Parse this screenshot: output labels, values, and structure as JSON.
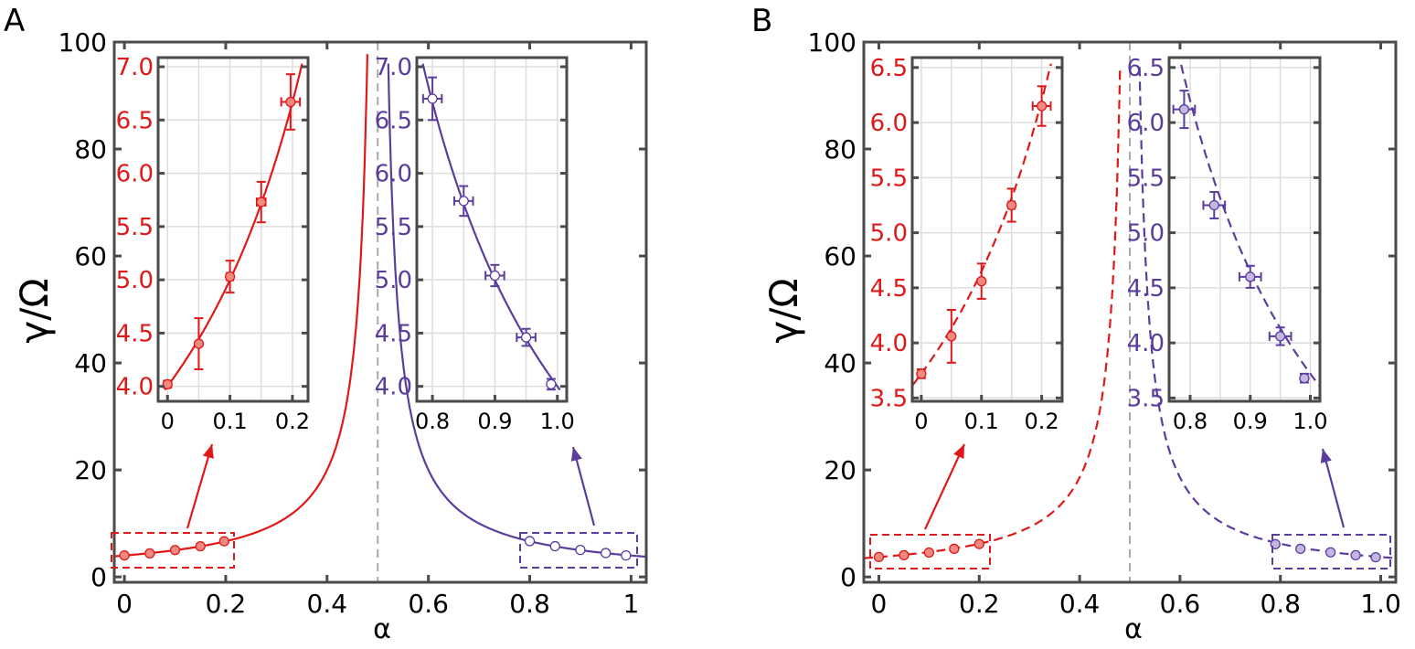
{
  "chart_data": [
    {
      "panel_label": "A",
      "type": "line+scatter",
      "xlabel": "α",
      "ylabel": "γ/Ω",
      "xlim": [
        -0.02,
        1.03
      ],
      "ylim": [
        -1,
        100
      ],
      "xticks": [
        "0",
        "0.2",
        "0.4",
        "0.6",
        "0.8",
        "1"
      ],
      "xtick_values": [
        0,
        0.2,
        0.4,
        0.6,
        0.8,
        1
      ],
      "yticks": [
        "0",
        "20",
        "40",
        "60",
        "80",
        "100"
      ],
      "ytick_values": [
        0,
        20,
        40,
        60,
        80,
        100
      ],
      "divergence_at": 0.5,
      "line_style": "solid",
      "curve_coefficient": 2.0,
      "series": [
        {
          "color": "#e01818",
          "marker_fill": "#f08a80",
          "x": [
            0,
            0.05,
            0.1,
            0.15,
            0.197
          ],
          "y": [
            4.02,
            4.4,
            5.03,
            5.73,
            6.67
          ],
          "yerr": [
            0.03,
            0.24,
            0.15,
            0.19,
            0.26
          ],
          "xerr": [
            0.005,
            0.002,
            0.005,
            0.007,
            0.015
          ]
        },
        {
          "color": "#5b3d9e",
          "marker_fill": "none",
          "x": [
            0.8,
            0.85,
            0.9,
            0.95,
            0.99
          ],
          "y": [
            6.7,
            5.74,
            5.04,
            4.46,
            4.02
          ],
          "yerr": [
            0.2,
            0.14,
            0.1,
            0.08,
            0.05
          ],
          "xerr": [
            0.015,
            0.015,
            0.015,
            0.015,
            0.003
          ]
        }
      ],
      "insets": [
        {
          "xlim": [
            -0.015,
            0.225
          ],
          "ylim": [
            3.86,
            7.086
          ],
          "xticks": [
            "0",
            "0.1",
            "0.2"
          ],
          "xtick_values": [
            0,
            0.1,
            0.2
          ],
          "yticks": [
            "4.0",
            "4.5",
            "5.0",
            "5.5",
            "6.0",
            "6.5",
            "7.0"
          ],
          "ytick_values": [
            4,
            4.5,
            5,
            5.5,
            6,
            6.5,
            7
          ],
          "series_index": 0
        },
        {
          "xlim": [
            0.775,
            1.015
          ],
          "ylim": [
            3.86,
            7.086
          ],
          "xticks": [
            "0.8",
            "0.9",
            "1.0"
          ],
          "xtick_values": [
            0.8,
            0.9,
            1.0
          ],
          "yticks": [
            "4.0",
            "4.5",
            "5.0",
            "5.5",
            "6.0",
            "6.5",
            "7.0"
          ],
          "ytick_values": [
            4,
            4.5,
            5,
            5.5,
            6,
            6.5,
            7
          ],
          "series_index": 1
        }
      ]
    },
    {
      "panel_label": "B",
      "type": "line+scatter",
      "xlabel": "α",
      "ylabel": "γ/Ω",
      "xlim": [
        -0.03,
        1.03
      ],
      "ylim": [
        -1,
        100
      ],
      "xticks": [
        "0",
        "0.2",
        "0.4",
        "0.6",
        "0.8",
        "1.0"
      ],
      "xtick_values": [
        0,
        0.2,
        0.4,
        0.6,
        0.8,
        1
      ],
      "yticks": [
        "0",
        "20",
        "40",
        "60",
        "80",
        "100"
      ],
      "ytick_values": [
        0,
        20,
        40,
        60,
        80,
        100
      ],
      "divergence_at": 0.5,
      "line_style": "dashed",
      "curve_coefficient": 1.86,
      "series": [
        {
          "color": "#e01818",
          "marker_fill": "#f08a80",
          "x": [
            0,
            0.05,
            0.1,
            0.15,
            0.2
          ],
          "y": [
            3.72,
            4.06,
            4.56,
            5.25,
            6.15
          ],
          "yerr": [
            0.04,
            0.24,
            0.16,
            0.15,
            0.18
          ],
          "xerr": [
            0.005,
            0.003,
            0.003,
            0.005,
            0.015
          ]
        },
        {
          "color": "#5b3d9e",
          "marker_fill": "#c4b6e0",
          "x": [
            0.79,
            0.84,
            0.9,
            0.95,
            0.99
          ],
          "y": [
            6.12,
            5.25,
            4.6,
            4.06,
            3.68
          ],
          "yerr": [
            0.17,
            0.12,
            0.1,
            0.08,
            0.04
          ],
          "xerr": [
            0.018,
            0.018,
            0.018,
            0.018,
            0.003
          ]
        }
      ],
      "insets": [
        {
          "xlim": [
            -0.015,
            0.234
          ],
          "ylim": [
            3.47,
            6.59
          ],
          "xticks": [
            "0",
            "0.1",
            "0.2"
          ],
          "xtick_values": [
            0,
            0.1,
            0.2
          ],
          "yticks": [
            "3.5",
            "4.0",
            "4.5",
            "5.0",
            "5.5",
            "6.0",
            "6.5"
          ],
          "ytick_values": [
            3.5,
            4,
            4.5,
            5,
            5.5,
            6,
            6.5
          ],
          "series_index": 0
        },
        {
          "xlim": [
            0.765,
            1.016
          ],
          "ylim": [
            3.47,
            6.59
          ],
          "xticks": [
            "0.8",
            "0.9",
            "1.0"
          ],
          "xtick_values": [
            0.8,
            0.9,
            1.0
          ],
          "yticks": [
            "3.5",
            "4.0",
            "4.5",
            "5.0",
            "5.5",
            "6.0",
            "6.5"
          ],
          "ytick_values": [
            3.5,
            4,
            4.5,
            5,
            5.5,
            6,
            6.5
          ],
          "series_index": 1
        }
      ]
    }
  ]
}
